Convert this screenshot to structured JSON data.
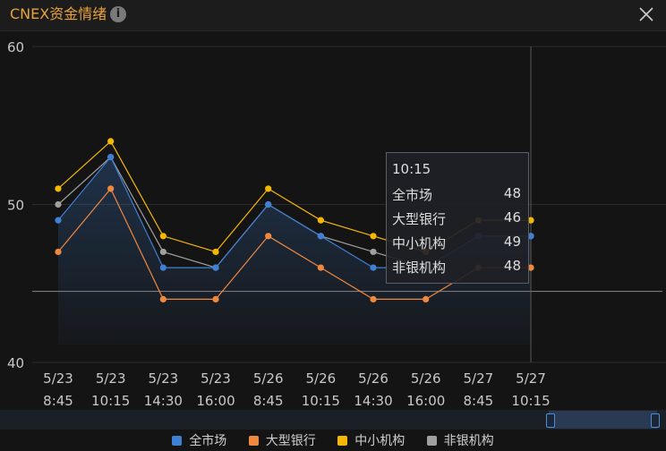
{
  "header": {
    "title": "CNEX资金情绪"
  },
  "colors": {
    "market": "#3f7fd4",
    "bank": "#f0883e",
    "mid": "#f5b800",
    "nonbank": "#a0a0a0"
  },
  "tooltip": {
    "title": "10:15",
    "rows": [
      {
        "name": "全市场",
        "value": "48"
      },
      {
        "name": "大型银行",
        "value": "46"
      },
      {
        "name": "中小机构",
        "value": "49"
      },
      {
        "name": "非银机构",
        "value": "48"
      }
    ]
  },
  "chart_data": {
    "type": "line",
    "categories": [
      "5/23 8:45",
      "5/23 10:15",
      "5/23 14:30",
      "5/23 16:00",
      "5/26 8:45",
      "5/26 10:15",
      "5/26 14:30",
      "5/26 16:00",
      "5/27 8:45",
      "5/27 10:15"
    ],
    "x_date_labels": [
      "5/23",
      "5/23",
      "5/23",
      "5/23",
      "5/26",
      "5/26",
      "5/26",
      "5/26",
      "5/27",
      "5/27"
    ],
    "x_time_labels": [
      "8:45",
      "10:15",
      "14:30",
      "16:00",
      "8:45",
      "10:15",
      "14:30",
      "16:00",
      "8:45",
      "10:15"
    ],
    "series": [
      {
        "name": "全市场",
        "values": [
          49,
          53,
          46,
          46,
          50,
          48,
          46,
          46,
          48,
          48
        ]
      },
      {
        "name": "大型银行",
        "values": [
          47,
          51,
          44,
          44,
          48,
          46,
          44,
          44,
          46,
          46
        ]
      },
      {
        "name": "中小机构",
        "values": [
          51,
          54,
          48,
          47,
          51,
          49,
          48,
          47,
          49,
          49
        ]
      },
      {
        "name": "非银机构",
        "values": [
          50,
          53,
          47,
          46,
          50,
          48,
          47,
          46,
          48,
          48
        ]
      }
    ],
    "ylim": [
      40,
      60
    ],
    "yticks": [
      "40",
      "50",
      "60"
    ],
    "reference_line": 44.5,
    "crosshair_index": 9,
    "area_series": "全市场",
    "grid": true,
    "legend_position": "bottom"
  }
}
